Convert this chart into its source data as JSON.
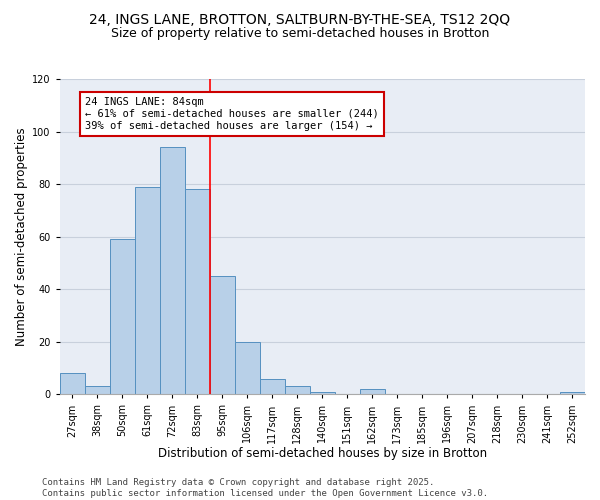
{
  "title1": "24, INGS LANE, BROTTON, SALTBURN-BY-THE-SEA, TS12 2QQ",
  "title2": "Size of property relative to semi-detached houses in Brotton",
  "xlabel": "Distribution of semi-detached houses by size in Brotton",
  "ylabel": "Number of semi-detached properties",
  "categories": [
    "27sqm",
    "38sqm",
    "50sqm",
    "61sqm",
    "72sqm",
    "83sqm",
    "95sqm",
    "106sqm",
    "117sqm",
    "128sqm",
    "140sqm",
    "151sqm",
    "162sqm",
    "173sqm",
    "185sqm",
    "196sqm",
    "207sqm",
    "218sqm",
    "230sqm",
    "241sqm",
    "252sqm"
  ],
  "values": [
    8,
    3,
    59,
    79,
    94,
    78,
    45,
    20,
    6,
    3,
    1,
    0,
    2,
    0,
    0,
    0,
    0,
    0,
    0,
    0,
    1
  ],
  "bar_color": "#b8d0e8",
  "bar_edge_color": "#5590c0",
  "red_line_index": 5.5,
  "annotation_text": "24 INGS LANE: 84sqm\n← 61% of semi-detached houses are smaller (244)\n39% of semi-detached houses are larger (154) →",
  "annotation_box_color": "#ffffff",
  "annotation_box_edge": "#cc0000",
  "ylim": [
    0,
    120
  ],
  "yticks": [
    0,
    20,
    40,
    60,
    80,
    100,
    120
  ],
  "grid_color": "#c8d0dc",
  "bg_color": "#e8edf5",
  "footer": "Contains HM Land Registry data © Crown copyright and database right 2025.\nContains public sector information licensed under the Open Government Licence v3.0.",
  "title_fontsize": 10,
  "subtitle_fontsize": 9,
  "axis_fontsize": 8.5,
  "tick_fontsize": 7,
  "footer_fontsize": 6.5,
  "ann_fontsize": 7.5
}
